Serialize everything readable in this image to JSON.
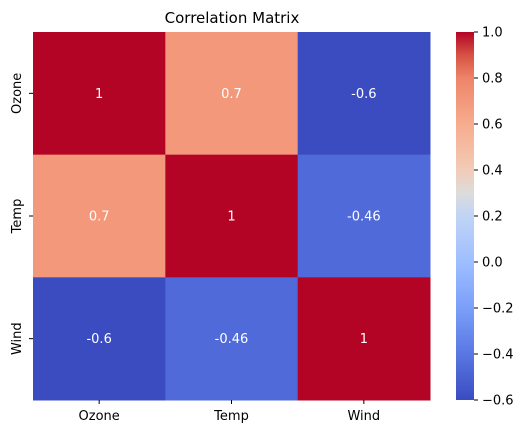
{
  "chart_data": {
    "type": "heatmap",
    "title": "Correlation Matrix",
    "x_labels": [
      "Ozone",
      "Temp",
      "Wind"
    ],
    "y_labels": [
      "Ozone",
      "Temp",
      "Wind"
    ],
    "values": [
      [
        1,
        0.7,
        -0.6
      ],
      [
        0.7,
        1,
        -0.46
      ],
      [
        -0.6,
        -0.46,
        1
      ]
    ],
    "cell_labels": [
      [
        "1",
        "0.7",
        "-0.6"
      ],
      [
        "0.7",
        "1",
        "-0.46"
      ],
      [
        "-0.6",
        "-0.46",
        "1"
      ]
    ],
    "colormap": "coolwarm",
    "vmin": -0.6,
    "vmax": 1.0,
    "colorbar_ticks": [
      1.0,
      0.8,
      0.6,
      0.4,
      0.2,
      0.0,
      -0.2,
      -0.4,
      -0.6
    ],
    "colorbar_tick_labels": [
      "1.0",
      "0.8",
      "0.6",
      "0.4",
      "0.2",
      "0.0",
      "−0.2",
      "−0.4",
      "−0.6"
    ]
  }
}
